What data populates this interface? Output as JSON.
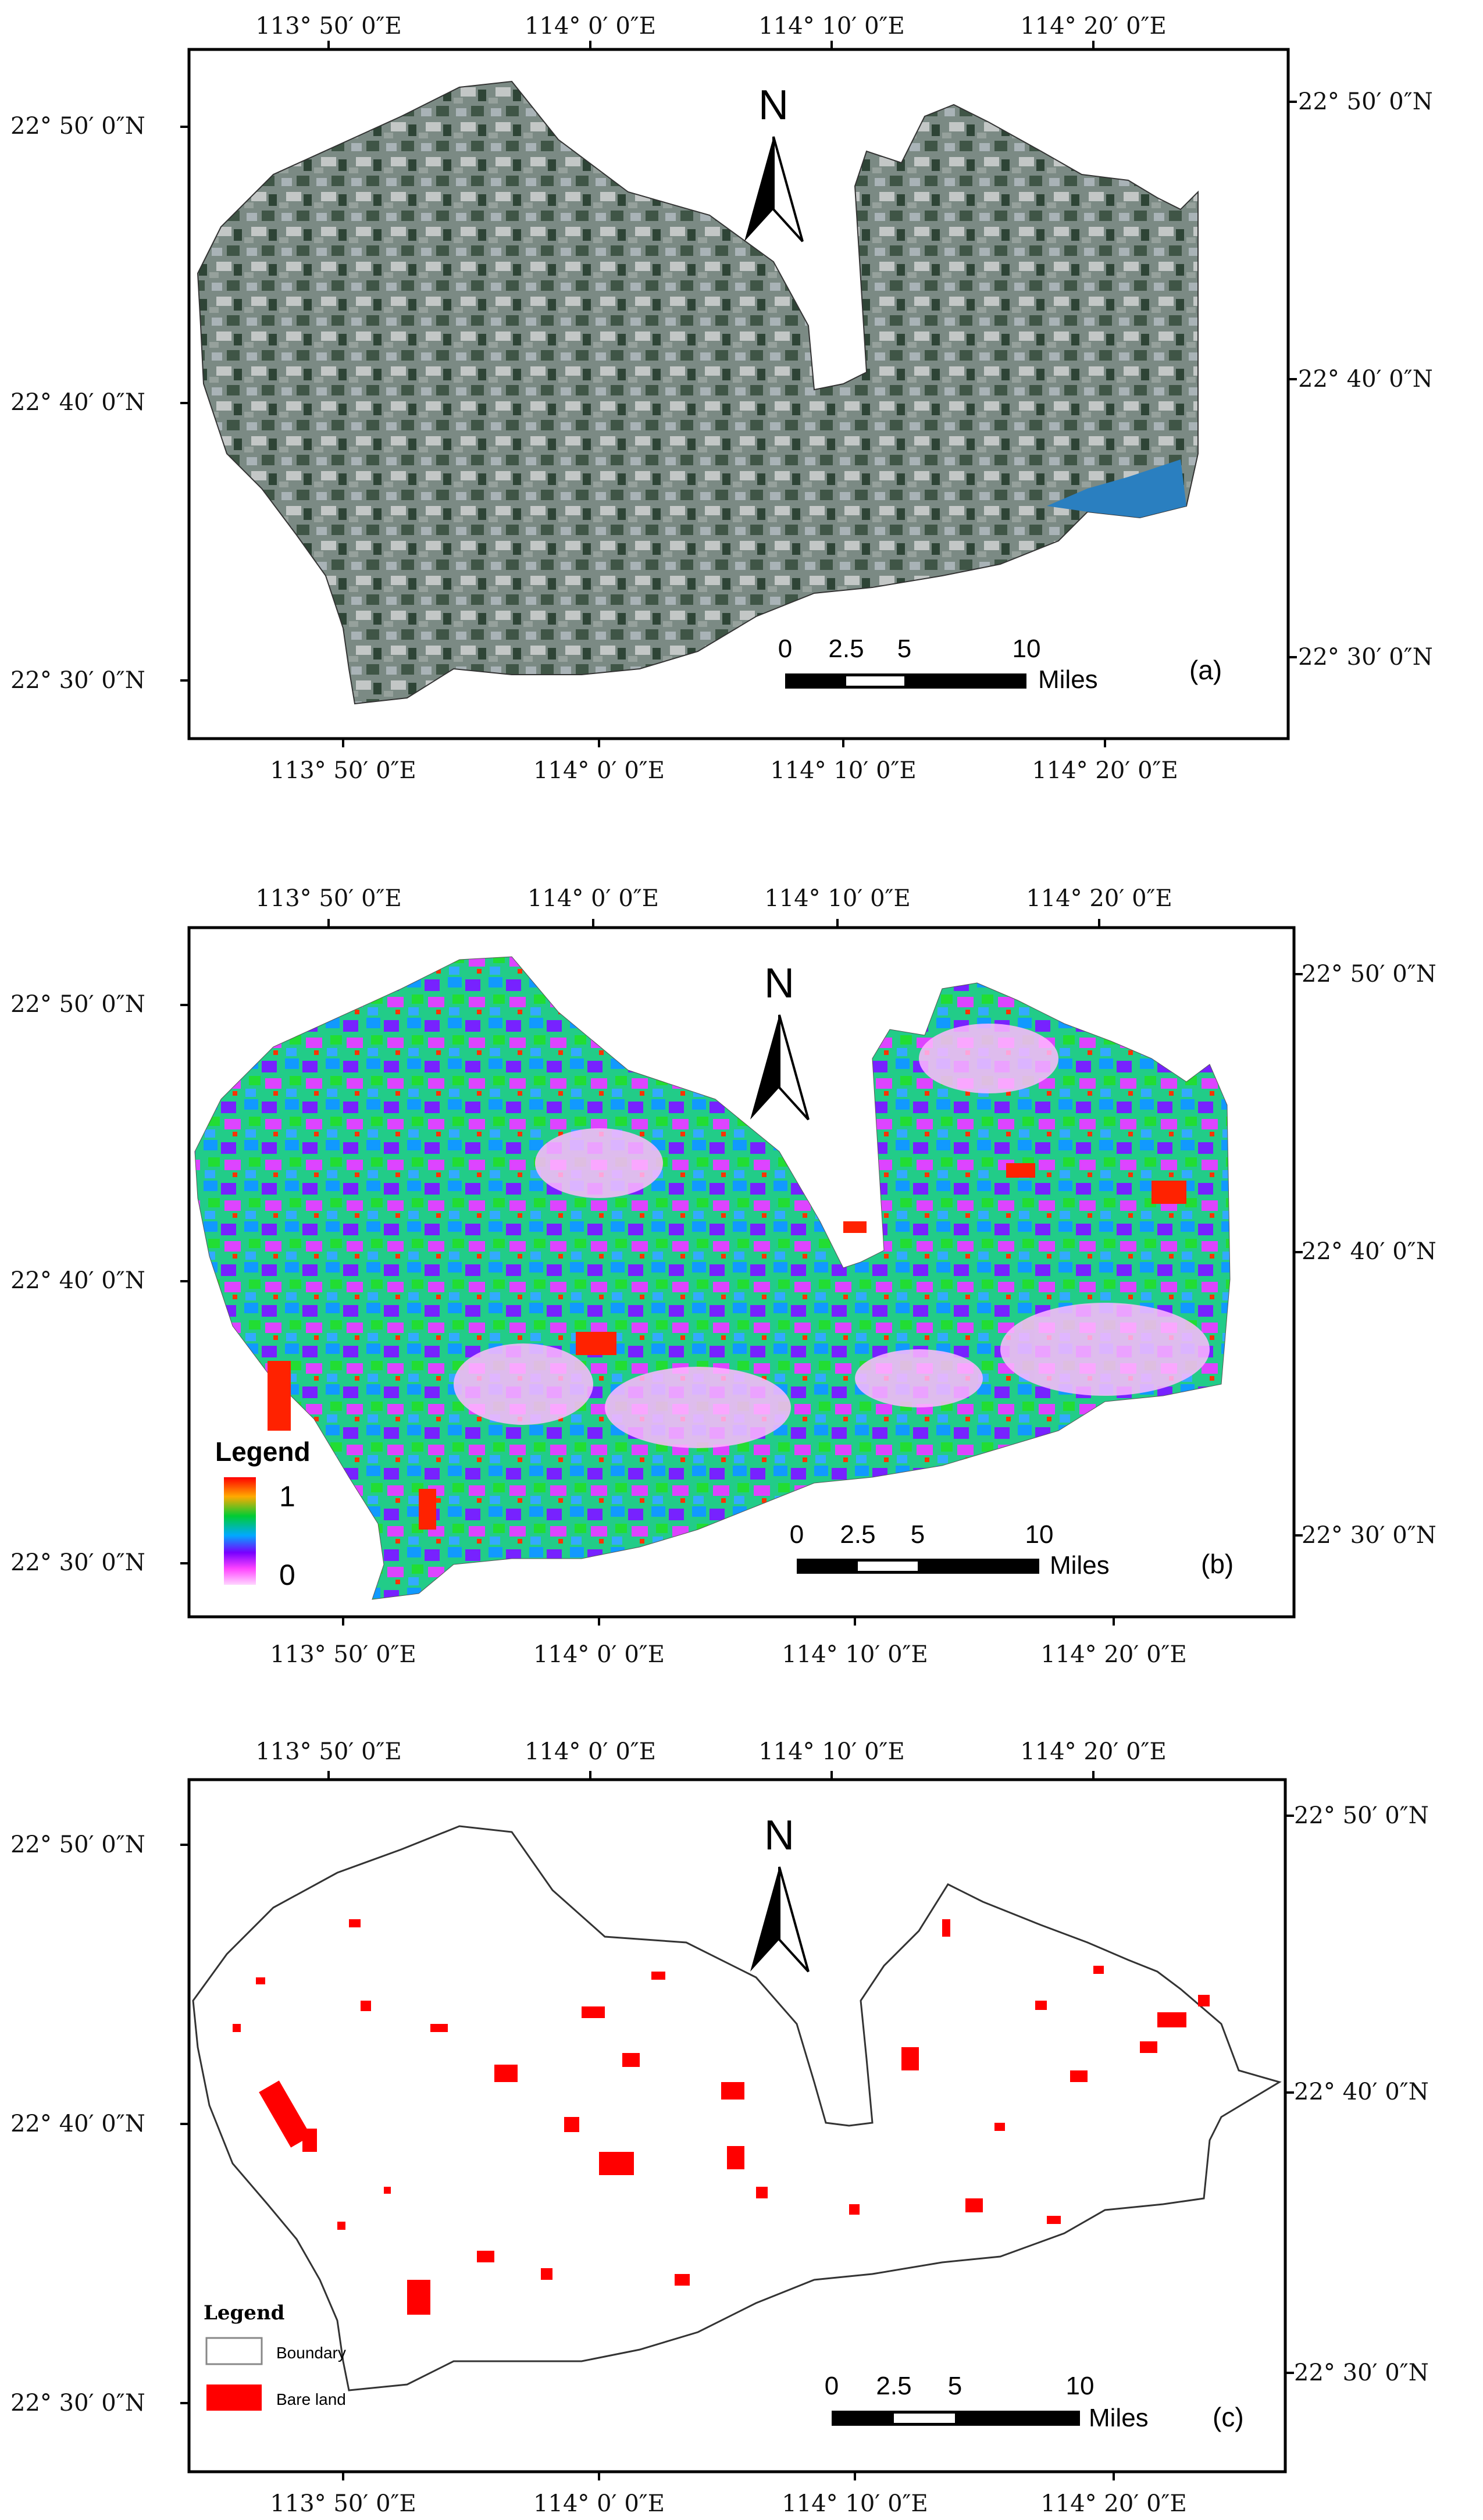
{
  "panels": [
    {
      "id": "a",
      "label": "(a)",
      "lon_labels": [
        "113° 50′ 0″E",
        "114° 0′ 0″E",
        "114° 10′ 0″E",
        "114° 20′ 0″E"
      ],
      "lat_labels": [
        "22° 50′ 0″N",
        "22° 40′ 0″N",
        "22° 30′ 0″N"
      ],
      "north": "N",
      "scale": {
        "ticks": [
          "0",
          "2.5",
          "5",
          "10"
        ],
        "unit": "Miles"
      }
    },
    {
      "id": "b",
      "label": "(b)",
      "lon_labels": [
        "113° 50′ 0″E",
        "114° 0′ 0″E",
        "114° 10′ 0″E",
        "114° 20′ 0″E"
      ],
      "lat_labels": [
        "22° 50′ 0″N",
        "22° 40′ 0″N",
        "22° 30′ 0″N"
      ],
      "north": "N",
      "scale": {
        "ticks": [
          "0",
          "2.5",
          "5",
          "10"
        ],
        "unit": "Miles"
      },
      "legend": {
        "title": "Legend",
        "max": "1",
        "min": "0",
        "ramp_colors": [
          "#ff0000",
          "#ffaa00",
          "#00cc33",
          "#00aaff",
          "#7700ff",
          "#ff44ff",
          "#ffd6ff"
        ]
      }
    },
    {
      "id": "c",
      "label": "(c)",
      "lon_labels": [
        "113° 50′ 0″E",
        "114° 0′ 0″E",
        "114° 10′ 0″E",
        "114° 20′ 0″E"
      ],
      "lat_labels": [
        "22° 50′ 0″N",
        "22° 40′ 0″N",
        "22° 30′ 0″N"
      ],
      "north": "N",
      "scale": {
        "ticks": [
          "0",
          "2.5",
          "5",
          "10"
        ],
        "unit": "Miles"
      },
      "legend": {
        "title": "Legend",
        "items": [
          {
            "label": "Boundary",
            "color": "#ffffff"
          },
          {
            "label": "Bare land",
            "color": "#ff0000"
          }
        ]
      }
    }
  ]
}
